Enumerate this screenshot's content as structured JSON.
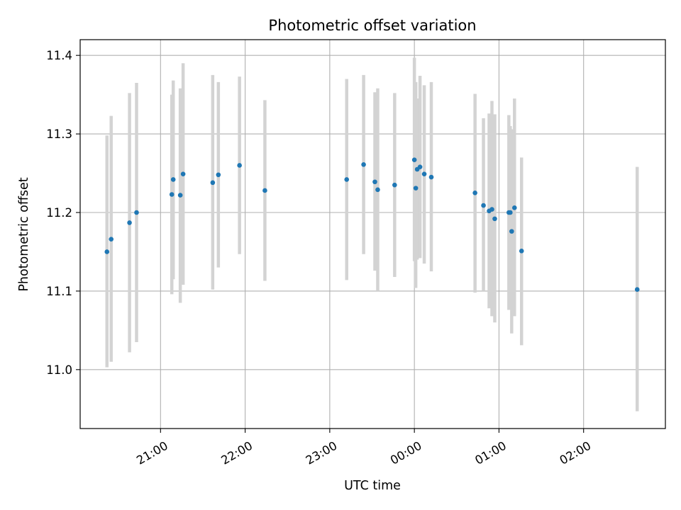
{
  "chart_data": {
    "type": "scatter",
    "title": "Photometric offset variation",
    "xlabel": "UTC time",
    "ylabel": "Photometric offset",
    "grid": true,
    "x_range": [
      "20:03",
      "02:58"
    ],
    "ylim": [
      10.925,
      11.42
    ],
    "x_ticks": [
      {
        "time": "21:00",
        "label": "21:00"
      },
      {
        "time": "22:00",
        "label": "22:00"
      },
      {
        "time": "23:00",
        "label": "23:00"
      },
      {
        "time": "00:00",
        "label": "00:00"
      },
      {
        "time": "01:00",
        "label": "01:00"
      },
      {
        "time": "02:00",
        "label": "02:00"
      }
    ],
    "y_ticks": [
      {
        "value": 11.0,
        "label": "11.0"
      },
      {
        "value": 11.1,
        "label": "11.1"
      },
      {
        "value": 11.2,
        "label": "11.2"
      },
      {
        "value": 11.3,
        "label": "11.3"
      },
      {
        "value": 11.4,
        "label": "11.4"
      }
    ],
    "colors": {
      "point": "#1f77b4",
      "errorbar": "#d3d3d3",
      "grid": "#b0b0b0"
    },
    "points": [
      {
        "time": "20:22",
        "y": 11.15,
        "lo": 11.003,
        "hi": 11.298
      },
      {
        "time": "20:25",
        "y": 11.166,
        "lo": 11.01,
        "hi": 11.323
      },
      {
        "time": "20:38",
        "y": 11.187,
        "lo": 11.022,
        "hi": 11.352
      },
      {
        "time": "20:43",
        "y": 11.2,
        "lo": 11.035,
        "hi": 11.365
      },
      {
        "time": "21:08",
        "y": 11.223,
        "lo": 11.096,
        "hi": 11.35
      },
      {
        "time": "21:09",
        "y": 11.242,
        "lo": 11.115,
        "hi": 11.368
      },
      {
        "time": "21:14",
        "y": 11.222,
        "lo": 11.085,
        "hi": 11.358
      },
      {
        "time": "21:16",
        "y": 11.249,
        "lo": 11.108,
        "hi": 11.39
      },
      {
        "time": "21:37",
        "y": 11.238,
        "lo": 11.102,
        "hi": 11.375
      },
      {
        "time": "21:41",
        "y": 11.248,
        "lo": 11.13,
        "hi": 11.366
      },
      {
        "time": "21:56",
        "y": 11.26,
        "lo": 11.147,
        "hi": 11.373
      },
      {
        "time": "22:14",
        "y": 11.228,
        "lo": 11.113,
        "hi": 11.343
      },
      {
        "time": "23:12",
        "y": 11.242,
        "lo": 11.114,
        "hi": 11.37
      },
      {
        "time": "23:24",
        "y": 11.261,
        "lo": 11.147,
        "hi": 11.375
      },
      {
        "time": "23:32",
        "y": 11.239,
        "lo": 11.126,
        "hi": 11.353
      },
      {
        "time": "23:34",
        "y": 11.229,
        "lo": 11.1,
        "hi": 11.358
      },
      {
        "time": "23:46",
        "y": 11.235,
        "lo": 11.118,
        "hi": 11.352
      },
      {
        "time": "00:00",
        "y": 11.267,
        "lo": 11.138,
        "hi": 11.397
      },
      {
        "time": "00:01",
        "y": 11.231,
        "lo": 11.104,
        "hi": 11.366
      },
      {
        "time": "00:02",
        "y": 11.255,
        "lo": 11.14,
        "hi": 11.345
      },
      {
        "time": "00:04",
        "y": 11.258,
        "lo": 11.142,
        "hi": 11.374
      },
      {
        "time": "00:07",
        "y": 11.249,
        "lo": 11.135,
        "hi": 11.362
      },
      {
        "time": "00:12",
        "y": 11.245,
        "lo": 11.125,
        "hi": 11.366
      },
      {
        "time": "00:43",
        "y": 11.225,
        "lo": 11.098,
        "hi": 11.351
      },
      {
        "time": "00:49",
        "y": 11.209,
        "lo": 11.1,
        "hi": 11.32
      },
      {
        "time": "00:53",
        "y": 11.202,
        "lo": 11.078,
        "hi": 11.326
      },
      {
        "time": "00:55",
        "y": 11.204,
        "lo": 11.068,
        "hi": 11.342
      },
      {
        "time": "00:57",
        "y": 11.192,
        "lo": 11.06,
        "hi": 11.325
      },
      {
        "time": "01:07",
        "y": 11.2,
        "lo": 11.076,
        "hi": 11.324
      },
      {
        "time": "01:08",
        "y": 11.2,
        "lo": 11.09,
        "hi": 11.31
      },
      {
        "time": "01:09",
        "y": 11.176,
        "lo": 11.046,
        "hi": 11.306
      },
      {
        "time": "01:11",
        "y": 11.206,
        "lo": 11.068,
        "hi": 11.345
      },
      {
        "time": "01:16",
        "y": 11.151,
        "lo": 11.031,
        "hi": 11.27
      },
      {
        "time": "02:38",
        "y": 11.102,
        "lo": 10.947,
        "hi": 11.258
      }
    ]
  }
}
